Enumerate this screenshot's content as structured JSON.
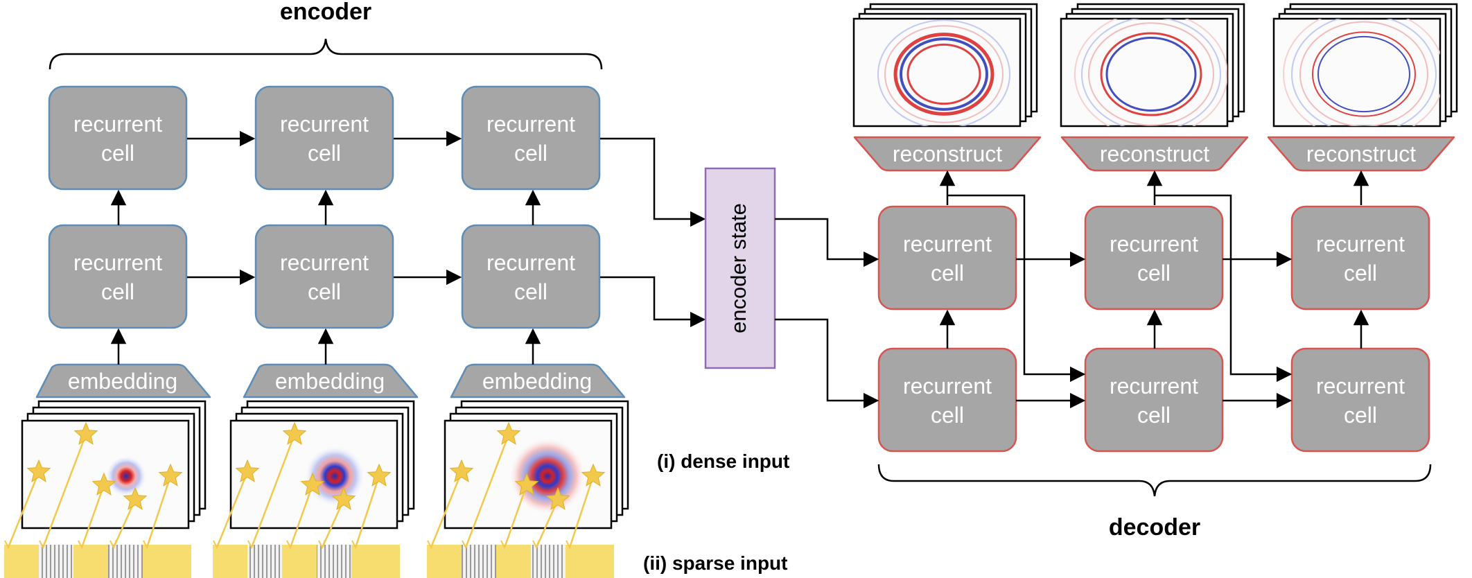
{
  "labels": {
    "encoder": "encoder",
    "decoder": "decoder",
    "dense_input": "(i) dense input",
    "sparse_input": "(ii) sparse input",
    "encoder_state": "encoder state",
    "embedding": "embedding",
    "reconstruct": "reconstruct",
    "cell_line1": "recurrent",
    "cell_line2": "cell"
  },
  "colors": {
    "cell_fill": "#a6a6a6",
    "encoder_border": "#5b8db8",
    "decoder_border": "#d9534f",
    "state_fill": "#e2d5ea",
    "state_border": "#8e6bb0",
    "star": "#f2c94c",
    "sensor": "#f7dc6f"
  },
  "icons": [
    "star-icon",
    "wavefield-thumbnail"
  ]
}
